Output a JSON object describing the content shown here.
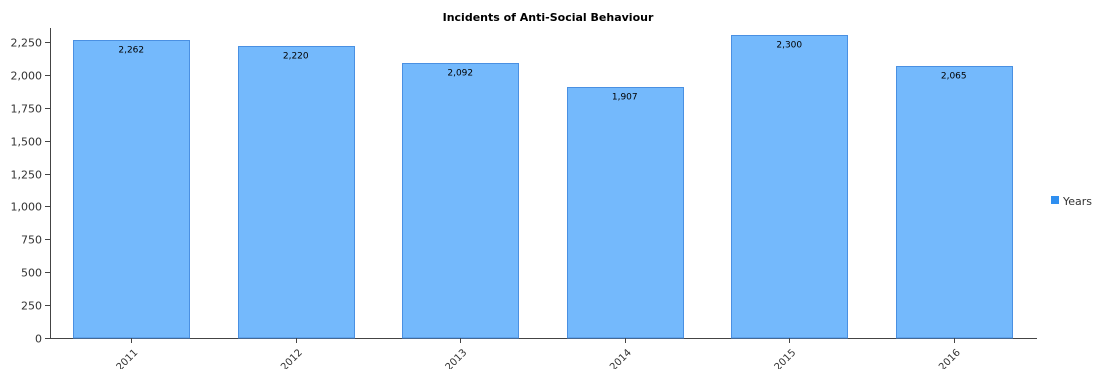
{
  "chart_data": {
    "type": "bar",
    "title": "Incidents of Anti-Social Behaviour",
    "categories": [
      "2011",
      "2012",
      "2013",
      "2014",
      "2015",
      "2016"
    ],
    "series": [
      {
        "name": "Years",
        "values": [
          2262,
          2220,
          2092,
          1907,
          2300,
          2065
        ]
      }
    ],
    "data_labels": [
      "2,262",
      "2,220",
      "2,092",
      "1,907",
      "2,300",
      "2,065"
    ],
    "y_ticks": [
      0,
      250,
      500,
      750,
      1000,
      1250,
      1500,
      1750,
      2000,
      2250
    ],
    "y_tick_labels": [
      "0",
      "250",
      "500",
      "750",
      "1,000",
      "1,250",
      "1,500",
      "1,750",
      "2,000",
      "2,250"
    ],
    "ylim": [
      0,
      2300
    ],
    "xlabel": "",
    "ylabel": "",
    "grid": false,
    "legend_position": "right",
    "colors": {
      "bar_fill": "#74b9fc",
      "bar_stroke": "#4a90e2",
      "legend_swatch": "#2f8ff0"
    }
  }
}
